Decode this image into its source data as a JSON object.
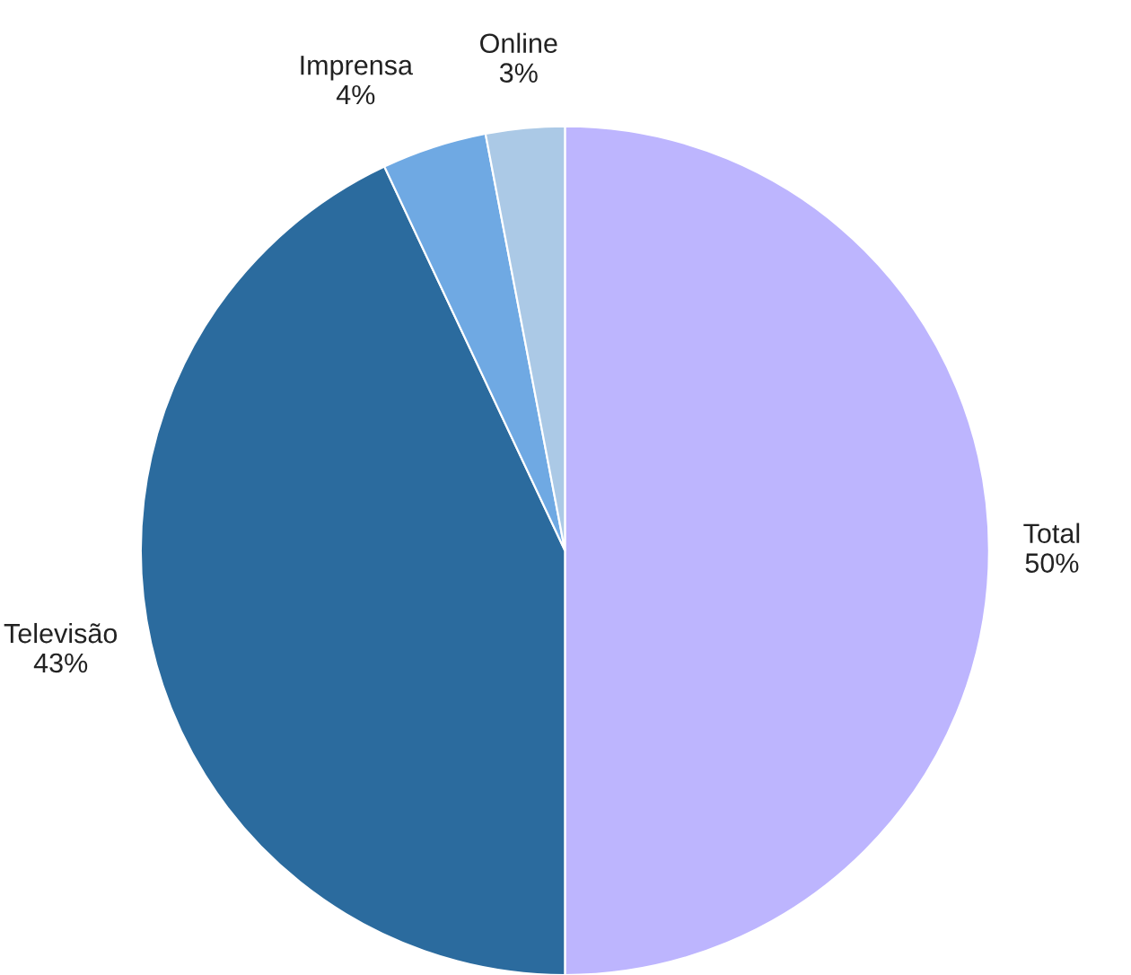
{
  "chart_data": {
    "type": "pie",
    "categories": [
      "Total",
      "Televisão",
      "Imprensa",
      "Online"
    ],
    "values": [
      50,
      43,
      4,
      3
    ],
    "value_labels": [
      "50%",
      "43%",
      "4%",
      "3%"
    ],
    "colors": [
      "#bdb5fe",
      "#2b6b9e",
      "#6fa9e3",
      "#abc9e6"
    ]
  }
}
